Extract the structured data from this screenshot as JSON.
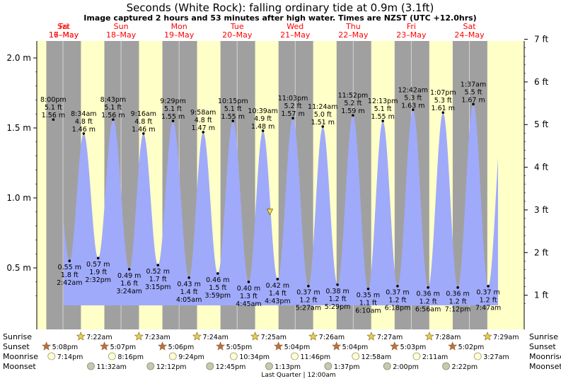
{
  "title": "Seconds (White Rock): falling  ordinary tide at 0.9m (3.1ft)",
  "subtitle": "Image captured 2 hours and 53 minutes after high water. Times are NZST (UTC +12.0hrs)",
  "days": [
    {
      "dow": "Fri",
      "date": "16–May"
    },
    {
      "dow": "Sat",
      "date": "17–May"
    },
    {
      "dow": "Sun",
      "date": "18–May"
    },
    {
      "dow": "Mon",
      "date": "19–May"
    },
    {
      "dow": "Tue",
      "date": "20–May"
    },
    {
      "dow": "Wed",
      "date": "21–May"
    },
    {
      "dow": "Thu",
      "date": "22–May"
    },
    {
      "dow": "Fri",
      "date": "23–May"
    },
    {
      "dow": "Sat",
      "date": "24–May"
    }
  ],
  "row_labels": {
    "sunrise": "Sunrise",
    "sunset": "Sunset",
    "moonrise": "Moonrise",
    "moonset": "Moonset"
  },
  "sunrise": [
    "7:22am",
    "7:23am",
    "7:24am",
    "7:25am",
    "7:26am",
    "7:27am",
    "7:28am",
    "7:29am"
  ],
  "sunset": [
    "5:08pm",
    "5:07pm",
    "5:06pm",
    "5:05pm",
    "5:04pm",
    "5:04pm",
    "5:03pm",
    "5:02pm"
  ],
  "moonrise": [
    "7:14pm",
    "8:16pm",
    "9:24pm",
    "10:34pm",
    "11:46pm",
    "12:58am",
    "2:11am",
    "3:27am"
  ],
  "moonset": [
    "11:32am",
    "12:12pm",
    "12:45pm",
    "1:13pm",
    "1:37pm",
    "2:00pm",
    "2:22pm"
  ],
  "moon_phase_note": "Last Quarter | 12:00am",
  "colors": {
    "day": "#ffffc8",
    "night": "#a0a0a0",
    "water": "#a0aafa",
    "red_text": "#ff0000",
    "marker": "#f0e050"
  },
  "chart_data": {
    "type": "area",
    "title": "Seconds (White Rock): falling  ordinary tide at 0.9m (3.1ft)",
    "x_range": [
      "2025-05-16T13:10",
      "2025-05-24T22:40"
    ],
    "ylim_m": [
      0.2,
      2.1
    ],
    "yticks_m": [
      "0.5 m",
      "1.0 m",
      "1.5 m",
      "2.0 m"
    ],
    "yticks_ft": [
      "1 ft",
      "2 ft",
      "3 ft",
      "4 ft",
      "5 ft",
      "6 ft",
      "7 ft"
    ],
    "current_level_m": 0.9,
    "tides": [
      {
        "type": "high",
        "time": "8:00 pm",
        "ft": "5.1 ft",
        "m": 1.56,
        "date": "2025-05-16T20:00"
      },
      {
        "type": "low",
        "time": "2:42 am",
        "ft": "1.8 ft",
        "m": 0.55,
        "date": "2025-05-17T02:42"
      },
      {
        "type": "high",
        "time": "8:34 am",
        "ft": "4.8 ft",
        "m": 1.46,
        "date": "2025-05-17T08:34"
      },
      {
        "type": "low",
        "time": "2:32 pm",
        "ft": "1.9 ft",
        "m": 0.57,
        "date": "2025-05-17T14:32"
      },
      {
        "type": "high",
        "time": "8:43 pm",
        "ft": "5.1 ft",
        "m": 1.56,
        "date": "2025-05-17T20:43"
      },
      {
        "type": "low",
        "time": "3:24 am",
        "ft": "1.6 ft",
        "m": 0.49,
        "date": "2025-05-18T03:24"
      },
      {
        "type": "high",
        "time": "9:16 am",
        "ft": "4.8 ft",
        "m": 1.46,
        "date": "2025-05-18T09:16"
      },
      {
        "type": "low",
        "time": "3:15 pm",
        "ft": "1.7 ft",
        "m": 0.52,
        "date": "2025-05-18T15:15"
      },
      {
        "type": "high",
        "time": "9:29 pm",
        "ft": "5.1 ft",
        "m": 1.55,
        "date": "2025-05-18T21:29"
      },
      {
        "type": "low",
        "time": "4:05 am",
        "ft": "1.4 ft",
        "m": 0.43,
        "date": "2025-05-19T04:05"
      },
      {
        "type": "high",
        "time": "9:58 am",
        "ft": "4.8 ft",
        "m": 1.47,
        "date": "2025-05-19T09:58"
      },
      {
        "type": "low",
        "time": "3:59 pm",
        "ft": "1.5 ft",
        "m": 0.46,
        "date": "2025-05-19T15:59"
      },
      {
        "type": "high",
        "time": "10:15 pm",
        "ft": "5.1 ft",
        "m": 1.55,
        "date": "2025-05-19T22:15"
      },
      {
        "type": "low",
        "time": "4:45 am",
        "ft": "1.3 ft",
        "m": 0.4,
        "date": "2025-05-20T04:45"
      },
      {
        "type": "high",
        "time": "10:39 am",
        "ft": "4.9 ft",
        "m": 1.48,
        "date": "2025-05-20T10:39"
      },
      {
        "type": "low",
        "time": "4:43 pm",
        "ft": "1.4 ft",
        "m": 0.42,
        "date": "2025-05-20T16:43"
      },
      {
        "type": "high",
        "time": "11:03 pm",
        "ft": "5.2 ft",
        "m": 1.57,
        "date": "2025-05-20T23:03"
      },
      {
        "type": "low",
        "time": "5:27 am",
        "ft": "1.2 ft",
        "m": 0.37,
        "date": "2025-05-21T05:27"
      },
      {
        "type": "high",
        "time": "11:24 am",
        "ft": "5.0 ft",
        "m": 1.51,
        "date": "2025-05-21T11:24"
      },
      {
        "type": "low",
        "time": "5:29 pm",
        "ft": "1.2 ft",
        "m": 0.38,
        "date": "2025-05-21T17:29"
      },
      {
        "type": "high",
        "time": "11:52 pm",
        "ft": "5.2 ft",
        "m": 1.59,
        "date": "2025-05-21T23:52"
      },
      {
        "type": "low",
        "time": "6:10 am",
        "ft": "1.1 ft",
        "m": 0.35,
        "date": "2025-05-22T06:10"
      },
      {
        "type": "high",
        "time": "12:13 pm",
        "ft": "5.1 ft",
        "m": 1.55,
        "date": "2025-05-22T12:13"
      },
      {
        "type": "low",
        "time": "6:18 pm",
        "ft": "1.2 ft",
        "m": 0.37,
        "date": "2025-05-22T18:18"
      },
      {
        "type": "high",
        "time": "12:42 am",
        "ft": "5.3 ft",
        "m": 1.63,
        "date": "2025-05-23T00:42"
      },
      {
        "type": "low",
        "time": "6:56 am",
        "ft": "1.2 ft",
        "m": 0.36,
        "date": "2025-05-23T06:56"
      },
      {
        "type": "high",
        "time": "1:07 pm",
        "ft": "5.3 ft",
        "m": 1.61,
        "date": "2025-05-23T13:07"
      },
      {
        "type": "low",
        "time": "7:12 pm",
        "ft": "1.2 ft",
        "m": 0.36,
        "date": "2025-05-23T19:12"
      },
      {
        "type": "high",
        "time": "1:37 am",
        "ft": "5.5 ft",
        "m": 1.67,
        "date": "2025-05-24T01:37"
      },
      {
        "type": "low",
        "time": "7:47 am",
        "ft": "1.2 ft",
        "m": 0.37,
        "date": "2025-05-24T07:47"
      }
    ]
  }
}
